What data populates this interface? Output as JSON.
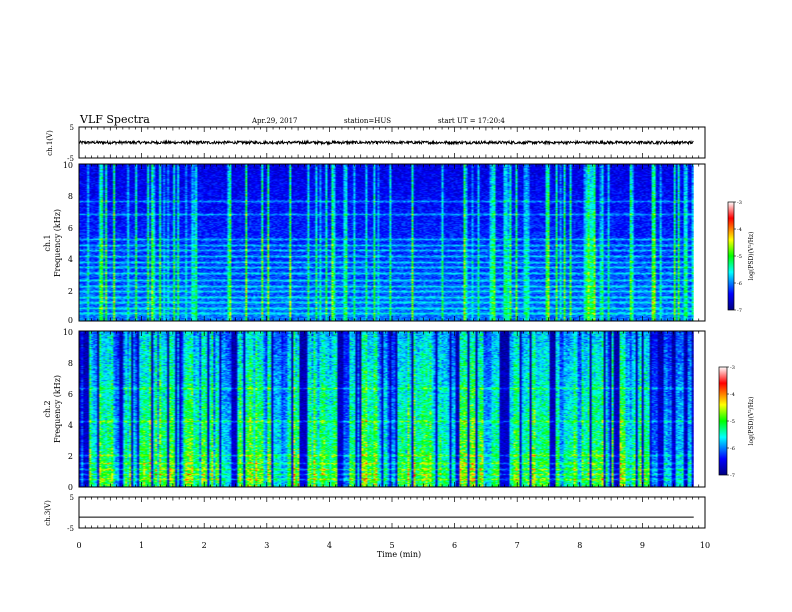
{
  "header": {
    "title": "VLF Spectra",
    "date": "Apr.29, 2017",
    "station": "station=HUS",
    "start_ut": "start UT =  17:20:4"
  },
  "chart_data": [
    {
      "type": "line",
      "name": "ch1-waveform",
      "ylabel": "ch.1(V)",
      "ylim": [
        -5,
        5
      ],
      "yticks": [
        "5",
        "-5"
      ],
      "xlim": [
        0,
        10
      ],
      "mean_value": 0
    },
    {
      "type": "heatmap",
      "name": "ch1-spectrogram",
      "ylabel_line1": "ch.1",
      "ylabel_line2": "Frequency (kHz)",
      "ylim": [
        0,
        10
      ],
      "yticks": [
        "0",
        "2",
        "4",
        "6",
        "8",
        "10"
      ],
      "xlim": [
        0,
        10
      ],
      "colorbar": {
        "label": "log(PSD)(V²/Hz)",
        "range": [
          -7,
          -3
        ],
        "ticks": [
          "-3",
          "-4",
          "-5",
          "-6",
          "-7"
        ]
      }
    },
    {
      "type": "heatmap",
      "name": "ch2-spectrogram",
      "ylabel_line1": "ch.2",
      "ylabel_line2": "Frequency (kHz)",
      "ylim": [
        0,
        10
      ],
      "yticks": [
        "0",
        "2",
        "4",
        "6",
        "8",
        "10"
      ],
      "xlim": [
        0,
        10
      ],
      "colorbar": {
        "label": "log(PSD)(V²/Hz)",
        "range": [
          -7,
          -3
        ],
        "ticks": [
          "-3",
          "-4",
          "-5",
          "-6",
          "-7"
        ]
      }
    },
    {
      "type": "line",
      "name": "ch3-waveform",
      "ylabel": "ch.3(V)",
      "ylim": [
        -5,
        5
      ],
      "yticks": [
        "5",
        "-5"
      ],
      "xlim": [
        0,
        10
      ],
      "mean_value": -1.5
    }
  ],
  "xaxis": {
    "label": "Time (min)",
    "ticks": [
      "0",
      "1",
      "2",
      "3",
      "4",
      "5",
      "6",
      "7",
      "8",
      "9",
      "10"
    ],
    "data_end_min": 9.82
  },
  "colors": {
    "low": "#000080",
    "mid_blue": "#0000ff",
    "cyan": "#00ffff",
    "green": "#00ff00",
    "yellow": "#ffff00",
    "red": "#ff0000",
    "top": "#ffffff"
  }
}
